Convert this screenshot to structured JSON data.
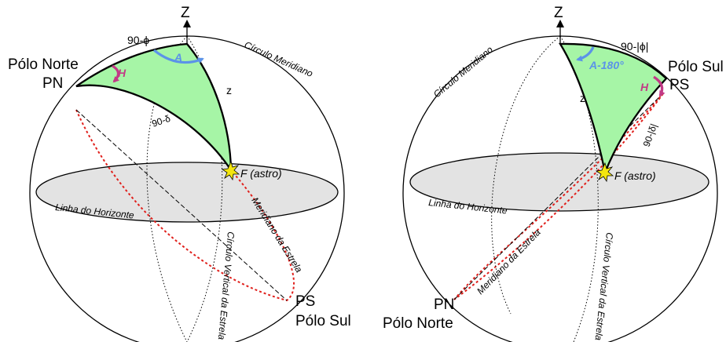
{
  "left": {
    "z_axis": "Z",
    "pole_north_name": "Pólo Norte",
    "pole_north_abbr": "PN",
    "pole_south_abbr": "PS",
    "pole_south_name": "Pólo Sul",
    "colat_label": "90-ϕ",
    "codec_label": "90-δ",
    "zenith_dist_label": "z",
    "azimuth_label": "A",
    "hour_angle_label": "H",
    "star_label": "F (astro)",
    "meridian_circle_label": "Círculo Meridiano",
    "horizon_label": "Linha do Horizonte",
    "star_meridian_label": "Meridiano da Estrela",
    "star_vertical_label": "Círculo Vertical da Estrela"
  },
  "right": {
    "z_axis": "Z",
    "pole_south_name": "Pólo Sul",
    "pole_south_abbr": "PS",
    "pole_north_abbr": "PN",
    "pole_north_name": "Pólo Norte",
    "colat_label": "90-|ϕ|",
    "codec_label": "90-|δ|",
    "zenith_dist_label": "z",
    "azimuth_label": "A-180°",
    "hour_angle_label": "H",
    "star_label": "F (astro)",
    "meridian_circle_label": "Círculo Meridiano",
    "horizon_label": "Linha do Horizonte",
    "star_meridian_label": "Meridiano da Estrela",
    "star_vertical_label": "Círculo Vertical da Estrela"
  },
  "colors": {
    "triangle_fill": "#a6f5a6",
    "horizon_fill": "#e3e3e3",
    "azimuth_arrow": "#5b93e8",
    "hour_arrow": "#c23a86",
    "meridian_dash": "#e0201c",
    "star": "#f4e60e"
  }
}
